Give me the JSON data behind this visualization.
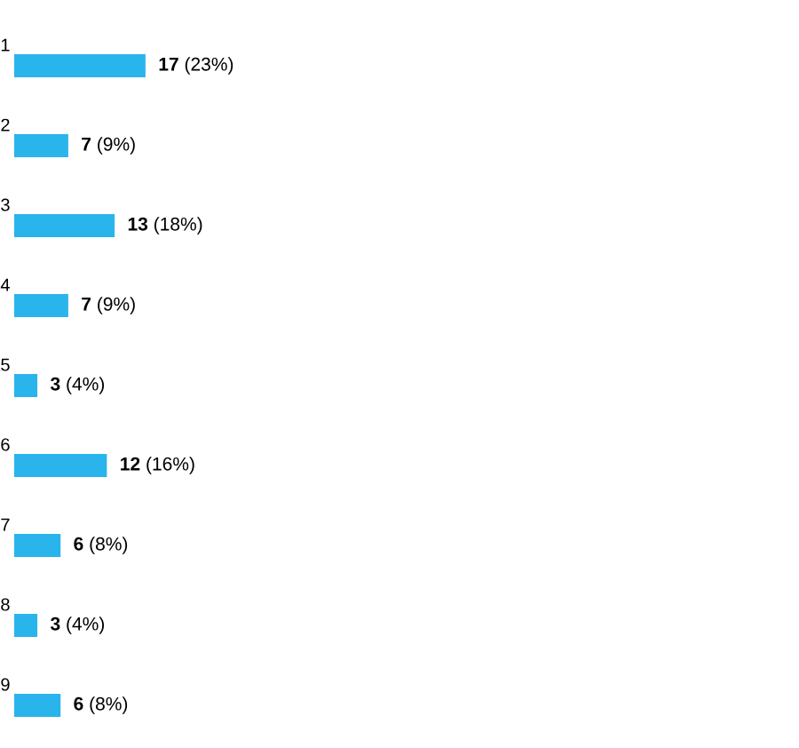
{
  "chart_data": {
    "type": "bar",
    "orientation": "horizontal",
    "categories": [
      "1",
      "2",
      "3",
      "4",
      "5",
      "6",
      "7",
      "8",
      "9"
    ],
    "values": [
      17,
      7,
      13,
      7,
      3,
      12,
      6,
      3,
      6
    ],
    "color": "#2ab4ec",
    "value_labels": [
      "**17** (23%)",
      "**7** (9%)",
      "**13** (18%)",
      "**7** (9%)",
      "**3** (4%)",
      "**12** (16%)",
      "**6** (8%)",
      "**3** (4%)",
      "**6** (8%)"
    ]
  }
}
